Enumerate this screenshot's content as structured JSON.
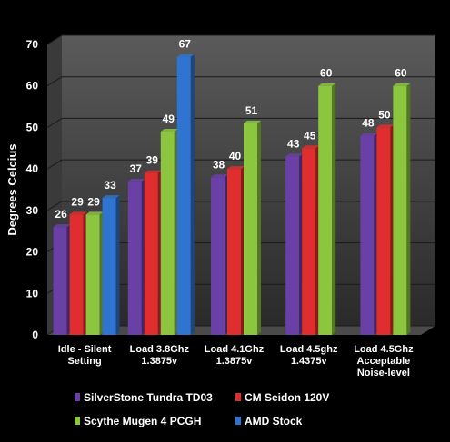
{
  "chart_data": {
    "type": "bar",
    "title": "",
    "xlabel": "",
    "ylabel": "Degrees Celcius",
    "ylim": [
      0,
      70
    ],
    "yticks": [
      0,
      10,
      20,
      30,
      40,
      50,
      60,
      70
    ],
    "grid": true,
    "legend_position": "bottom",
    "categories": [
      [
        "Idle - Silent",
        "Setting"
      ],
      [
        "Load 3.8Ghz",
        "1.3875v"
      ],
      [
        "Load 4.1Ghz",
        "1.3875v"
      ],
      [
        "Load 4.5ghz",
        "1.4375v"
      ],
      [
        "Load 4.5Ghz",
        "Acceptable",
        "Noise-level"
      ]
    ],
    "series": [
      {
        "name": "SilverStone Tundra TD03",
        "color": "#6a3fa6",
        "values": [
          26,
          37,
          38,
          43,
          48
        ]
      },
      {
        "name": "CM Seidon 120V",
        "color": "#e02e2e",
        "values": [
          29,
          39,
          40,
          45,
          50
        ]
      },
      {
        "name": "Scythe Mugen 4 PCGH",
        "color": "#8cc63f",
        "values": [
          29,
          49,
          51,
          60,
          60
        ]
      },
      {
        "name": "AMD Stock",
        "color": "#2f74d0",
        "values": [
          33,
          67,
          null,
          null,
          null
        ]
      }
    ]
  }
}
